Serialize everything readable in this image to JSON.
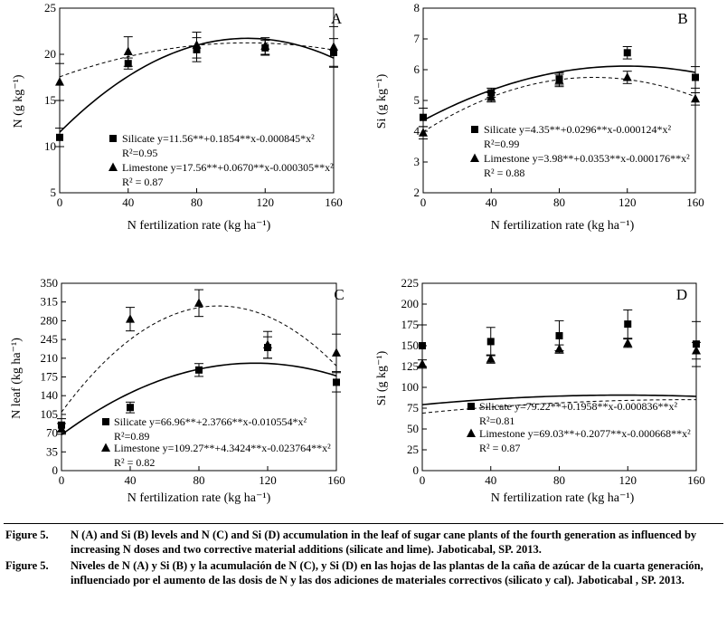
{
  "charts": [
    {
      "id": "A",
      "letter": "A",
      "type": "scatter",
      "ylabel": "N (g kg⁻¹)",
      "xlabel": "N fertilization rate (kg ha⁻¹)",
      "xlim": [
        0,
        160
      ],
      "ylim": [
        5,
        25
      ],
      "xticks": [
        "0",
        "40",
        "80",
        "120",
        "160"
      ],
      "yticks": [
        "5",
        "10",
        "15",
        "20",
        "25"
      ],
      "ytick_values": [
        5,
        10,
        15,
        20,
        25
      ],
      "series": [
        {
          "name": "Silicate",
          "marker": "square",
          "line": "solid",
          "x": [
            0,
            40,
            80,
            120,
            160
          ],
          "y": [
            11.0,
            19.0,
            20.5,
            20.7,
            20.2
          ],
          "err": [
            1.0,
            0.6,
            1.3,
            0.8,
            1.5
          ],
          "coef": [
            11.56,
            0.1854,
            -0.000845
          ],
          "equation": "Silicate y=11.56**+0.1854**x-0.000845*x²",
          "r2": "R²=0.95"
        },
        {
          "name": "Limestone",
          "marker": "triangle",
          "line": "dashed",
          "x": [
            0,
            40,
            80,
            120,
            160
          ],
          "y": [
            17.0,
            20.3,
            21.0,
            20.9,
            20.8
          ],
          "err": [
            2.0,
            1.6,
            1.4,
            0.9,
            2.2
          ],
          "coef": [
            17.56,
            0.067,
            -0.000305
          ],
          "equation": "Limestone y=17.56**+0.0670**x-0.000305**x²",
          "r2": "R² = 0.87"
        }
      ]
    },
    {
      "id": "B",
      "letter": "B",
      "type": "scatter",
      "ylabel": "Si (g kg⁻¹)",
      "xlabel": "N fertilization rate (kg ha⁻¹)",
      "xlim": [
        0,
        160
      ],
      "ylim": [
        2,
        8
      ],
      "xticks": [
        "0",
        "40",
        "80",
        "120",
        "160"
      ],
      "yticks": [
        "2",
        "3",
        "4",
        "5",
        "6",
        "7",
        "8"
      ],
      "ytick_values": [
        2,
        3,
        4,
        5,
        6,
        7,
        8
      ],
      "series": [
        {
          "name": "Silicate",
          "marker": "square",
          "line": "solid",
          "x": [
            0,
            40,
            80,
            120,
            160
          ],
          "y": [
            4.45,
            5.25,
            5.7,
            6.55,
            5.75
          ],
          "err": [
            0.3,
            0.15,
            0.2,
            0.2,
            0.35
          ],
          "coef": [
            4.35,
            0.0296,
            -0.000124
          ],
          "equation": "Silicate y=4.35**+0.0296**x-0.000124*x²",
          "r2": "R²=0.99"
        },
        {
          "name": "Limestone",
          "marker": "triangle",
          "line": "dashed",
          "x": [
            0,
            40,
            80,
            120,
            160
          ],
          "y": [
            3.95,
            5.1,
            5.65,
            5.75,
            5.05
          ],
          "err": [
            0.2,
            0.15,
            0.2,
            0.2,
            0.2
          ],
          "coef": [
            3.98,
            0.0353,
            -0.000176
          ],
          "equation": "Limestone y=3.98**+0.0353**x-0.000176**x²",
          "r2": "R² = 0.88"
        }
      ]
    },
    {
      "id": "C",
      "letter": "C",
      "type": "scatter",
      "ylabel": "N leaf (kg ha⁻¹)",
      "xlabel": "N fertilization rate (kg ha⁻¹)",
      "xlim": [
        0,
        160
      ],
      "ylim": [
        0,
        350
      ],
      "xticks": [
        "0",
        "40",
        "80",
        "120",
        "160"
      ],
      "yticks": [
        "0",
        "35",
        "70",
        "105",
        "140",
        "175",
        "210",
        "245",
        "280",
        "315",
        "350"
      ],
      "ytick_values": [
        0,
        35,
        70,
        105,
        140,
        175,
        210,
        245,
        280,
        315,
        350
      ],
      "series": [
        {
          "name": "Silicate",
          "marker": "square",
          "line": "solid",
          "x": [
            0,
            40,
            80,
            120,
            160
          ],
          "y": [
            85,
            118,
            188,
            230,
            165
          ],
          "err": [
            12,
            10,
            12,
            20,
            18
          ],
          "coef": [
            66.96,
            2.3766,
            -0.010554
          ],
          "equation": "Silicate y=66.96**+2.3766**x-0.010554*x²",
          "r2": "R²=0.89"
        },
        {
          "name": "Limestone",
          "marker": "triangle",
          "line": "dashed",
          "x": [
            0,
            40,
            80,
            120,
            160
          ],
          "y": [
            78,
            283,
            313,
            235,
            220
          ],
          "err": [
            10,
            22,
            25,
            25,
            35
          ],
          "coef": [
            109.27,
            4.3424,
            -0.023764
          ],
          "equation": "Limestone y=109.27**+4.3424**x-0.023764**x²",
          "r2": "R² = 0.82"
        }
      ]
    },
    {
      "id": "D",
      "letter": "D",
      "type": "scatter",
      "ylabel": "Si (g kg⁻¹)",
      "xlabel": "N fertilization rate (kg ha⁻¹)",
      "xlim": [
        0,
        160
      ],
      "ylim": [
        0,
        225
      ],
      "xticks": [
        "0",
        "40",
        "80",
        "120",
        "160"
      ],
      "yticks": [
        "0",
        "25",
        "50",
        "75",
        "100",
        "125",
        "150",
        "175",
        "200",
        "225"
      ],
      "ytick_values": [
        0,
        25,
        50,
        75,
        100,
        125,
        150,
        175,
        200,
        225
      ],
      "series": [
        {
          "name": "Silicate",
          "marker": "square",
          "line": "solid",
          "x": [
            0,
            40,
            80,
            120,
            160
          ],
          "y": [
            150,
            155,
            162,
            176,
            152
          ],
          "err": [
            25,
            17,
            18,
            17,
            27
          ],
          "coef": [
            79.22,
            0.1958,
            -0.000836
          ],
          "equation": "Silicate y=79.22**+0.1958**x-0.000836**x²",
          "r2": "R²=0.81"
        },
        {
          "name": "Limestone",
          "marker": "triangle",
          "line": "dashed",
          "x": [
            0,
            40,
            80,
            120,
            160
          ],
          "y": [
            128,
            134,
            146,
            153,
            144
          ],
          "err": [
            5,
            5,
            5,
            5,
            10
          ],
          "coef": [
            69.03,
            0.2077,
            -0.000668
          ],
          "equation": "Limestone y=69.03**+0.2077**x-0.000668**x²",
          "r2": "R² = 0.87"
        }
      ]
    }
  ],
  "caption": {
    "en_label": "Figure 5.",
    "en_text": "N (A) and Si (B) levels and N (C) and Si (D) accumulation in the leaf of sugar cane plants of the fourth generation as influenced by increasing N doses and two corrective material additions (silicate and lime). Jaboticabal, SP. 2013.",
    "es_label": "Figure 5.",
    "es_text": "Niveles de N (A) y Si (B) y la acumulación de N (C), y Si (D) en las hojas de las plantas de la caña de azúcar de la cuarta generación, influenciado por el aumento de las dosis de N y las dos adiciones de materiales correctivos (silicato y cal). Jaboticabal , SP. 2013."
  }
}
